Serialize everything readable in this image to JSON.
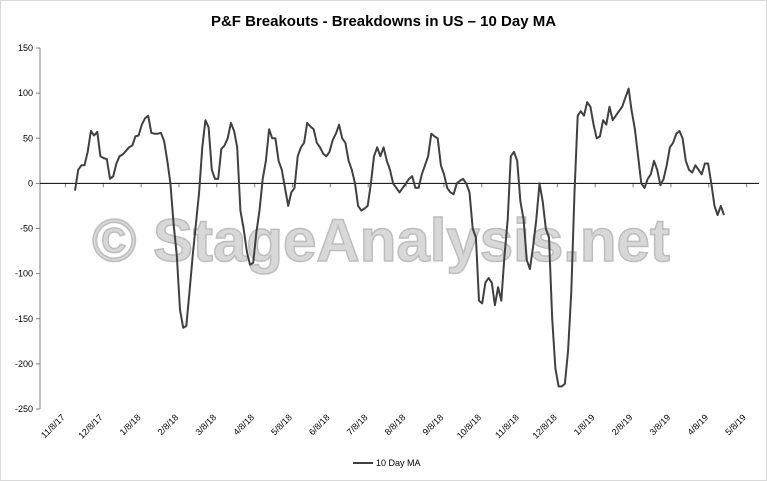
{
  "chart_data": {
    "type": "line",
    "title": "P&F Breakouts - Breakdowns in US – 10 Day MA",
    "xlabel": "",
    "ylabel": "",
    "ylim": [
      -250,
      150
    ],
    "y_ticks": [
      150,
      100,
      50,
      0,
      -50,
      -100,
      -150,
      -200,
      -250
    ],
    "x_ticks": [
      "11/8/17",
      "12/8/17",
      "1/8/18",
      "2/8/18",
      "3/8/18",
      "4/8/18",
      "5/8/18",
      "6/8/18",
      "7/8/18",
      "8/8/18",
      "9/8/18",
      "10/8/18",
      "11/8/18",
      "12/8/18",
      "1/8/19",
      "2/8/19",
      "3/8/19",
      "4/8/19",
      "5/8/19"
    ],
    "grid": false,
    "legend_position": "bottom",
    "watermark": "© StageAnalysis.net",
    "series": [
      {
        "name": "10 Day MA",
        "color": "#404040",
        "points": [
          [
            11,
            -8
          ],
          [
            12,
            15
          ],
          [
            13,
            20
          ],
          [
            14,
            20
          ],
          [
            15,
            35
          ],
          [
            16,
            58
          ],
          [
            17,
            53
          ],
          [
            18,
            57
          ],
          [
            19,
            30
          ],
          [
            20,
            28
          ],
          [
            21,
            27
          ],
          [
            22,
            5
          ],
          [
            23,
            8
          ],
          [
            24,
            22
          ],
          [
            25,
            30
          ],
          [
            26,
            32
          ],
          [
            27,
            36
          ],
          [
            28,
            40
          ],
          [
            29,
            42
          ],
          [
            30,
            52
          ],
          [
            31,
            53
          ],
          [
            32,
            65
          ],
          [
            33,
            72
          ],
          [
            34,
            75
          ],
          [
            35,
            56
          ],
          [
            36,
            55
          ],
          [
            37,
            55
          ],
          [
            38,
            56
          ],
          [
            39,
            47
          ],
          [
            40,
            25
          ],
          [
            41,
            0
          ],
          [
            42,
            -45
          ],
          [
            43,
            -80
          ],
          [
            44,
            -140
          ],
          [
            45,
            -160
          ],
          [
            46,
            -158
          ],
          [
            47,
            -120
          ],
          [
            48,
            -80
          ],
          [
            49,
            -45
          ],
          [
            50,
            -10
          ],
          [
            51,
            40
          ],
          [
            52,
            70
          ],
          [
            53,
            62
          ],
          [
            54,
            15
          ],
          [
            55,
            5
          ],
          [
            56,
            5
          ],
          [
            57,
            38
          ],
          [
            58,
            42
          ],
          [
            59,
            50
          ],
          [
            60,
            67
          ],
          [
            61,
            58
          ],
          [
            62,
            40
          ],
          [
            63,
            -30
          ],
          [
            64,
            -50
          ],
          [
            65,
            -75
          ],
          [
            66,
            -90
          ],
          [
            67,
            -88
          ],
          [
            68,
            -55
          ],
          [
            69,
            -30
          ],
          [
            70,
            5
          ],
          [
            71,
            25
          ],
          [
            72,
            60
          ],
          [
            73,
            50
          ],
          [
            74,
            50
          ],
          [
            75,
            25
          ],
          [
            76,
            15
          ],
          [
            77,
            -5
          ],
          [
            78,
            -25
          ],
          [
            79,
            -10
          ],
          [
            80,
            -5
          ],
          [
            81,
            30
          ],
          [
            82,
            40
          ],
          [
            83,
            45
          ],
          [
            84,
            67
          ],
          [
            85,
            63
          ],
          [
            86,
            60
          ],
          [
            87,
            45
          ],
          [
            88,
            40
          ],
          [
            89,
            33
          ],
          [
            90,
            30
          ],
          [
            91,
            35
          ],
          [
            92,
            48
          ],
          [
            93,
            55
          ],
          [
            94,
            65
          ],
          [
            95,
            50
          ],
          [
            96,
            45
          ],
          [
            97,
            25
          ],
          [
            98,
            15
          ],
          [
            99,
            0
          ],
          [
            100,
            -25
          ],
          [
            101,
            -30
          ],
          [
            102,
            -28
          ],
          [
            103,
            -25
          ],
          [
            104,
            0
          ],
          [
            105,
            30
          ],
          [
            106,
            40
          ],
          [
            107,
            30
          ],
          [
            108,
            40
          ],
          [
            109,
            25
          ],
          [
            110,
            15
          ],
          [
            111,
            0
          ],
          [
            112,
            -5
          ],
          [
            113,
            -10
          ],
          [
            114,
            -5
          ],
          [
            115,
            0
          ],
          [
            116,
            5
          ],
          [
            117,
            8
          ],
          [
            118,
            -5
          ],
          [
            119,
            -5
          ],
          [
            120,
            10
          ],
          [
            121,
            20
          ],
          [
            122,
            30
          ],
          [
            123,
            55
          ],
          [
            124,
            52
          ],
          [
            125,
            50
          ],
          [
            126,
            20
          ],
          [
            127,
            10
          ],
          [
            128,
            -5
          ],
          [
            129,
            -10
          ],
          [
            130,
            -12
          ],
          [
            131,
            0
          ],
          [
            132,
            3
          ],
          [
            133,
            5
          ],
          [
            134,
            0
          ],
          [
            135,
            -10
          ],
          [
            136,
            -50
          ],
          [
            137,
            -60
          ],
          [
            138,
            -130
          ],
          [
            139,
            -133
          ],
          [
            140,
            -110
          ],
          [
            141,
            -105
          ],
          [
            142,
            -110
          ],
          [
            143,
            -135
          ],
          [
            144,
            -115
          ],
          [
            145,
            -130
          ],
          [
            146,
            -80
          ],
          [
            147,
            -40
          ],
          [
            148,
            30
          ],
          [
            149,
            35
          ],
          [
            150,
            25
          ],
          [
            151,
            -20
          ],
          [
            152,
            -40
          ],
          [
            153,
            -85
          ],
          [
            154,
            -95
          ],
          [
            155,
            -70
          ],
          [
            156,
            -40
          ],
          [
            157,
            0
          ],
          [
            158,
            -20
          ],
          [
            159,
            -50
          ],
          [
            160,
            -60
          ],
          [
            161,
            -150
          ],
          [
            162,
            -205
          ],
          [
            163,
            -225
          ],
          [
            164,
            -225
          ],
          [
            165,
            -222
          ],
          [
            166,
            -185
          ],
          [
            167,
            -120
          ],
          [
            168,
            -10
          ],
          [
            169,
            75
          ],
          [
            170,
            80
          ],
          [
            171,
            75
          ],
          [
            172,
            90
          ],
          [
            173,
            85
          ],
          [
            174,
            65
          ],
          [
            175,
            50
          ],
          [
            176,
            52
          ],
          [
            177,
            70
          ],
          [
            178,
            65
          ],
          [
            179,
            85
          ],
          [
            180,
            70
          ],
          [
            181,
            75
          ],
          [
            182,
            80
          ],
          [
            183,
            85
          ],
          [
            184,
            95
          ],
          [
            185,
            105
          ],
          [
            186,
            80
          ],
          [
            187,
            60
          ],
          [
            188,
            30
          ],
          [
            189,
            0
          ],
          [
            190,
            -5
          ],
          [
            191,
            5
          ],
          [
            192,
            10
          ],
          [
            193,
            25
          ],
          [
            194,
            15
          ],
          [
            195,
            -2
          ],
          [
            196,
            5
          ],
          [
            197,
            20
          ],
          [
            198,
            40
          ],
          [
            199,
            45
          ],
          [
            200,
            55
          ],
          [
            201,
            58
          ],
          [
            202,
            50
          ],
          [
            203,
            25
          ],
          [
            204,
            15
          ],
          [
            205,
            12
          ],
          [
            206,
            20
          ],
          [
            207,
            15
          ],
          [
            208,
            10
          ],
          [
            209,
            22
          ],
          [
            210,
            22
          ],
          [
            211,
            0
          ],
          [
            212,
            -25
          ],
          [
            213,
            -35
          ],
          [
            214,
            -25
          ],
          [
            215,
            -35
          ]
        ]
      }
    ]
  }
}
